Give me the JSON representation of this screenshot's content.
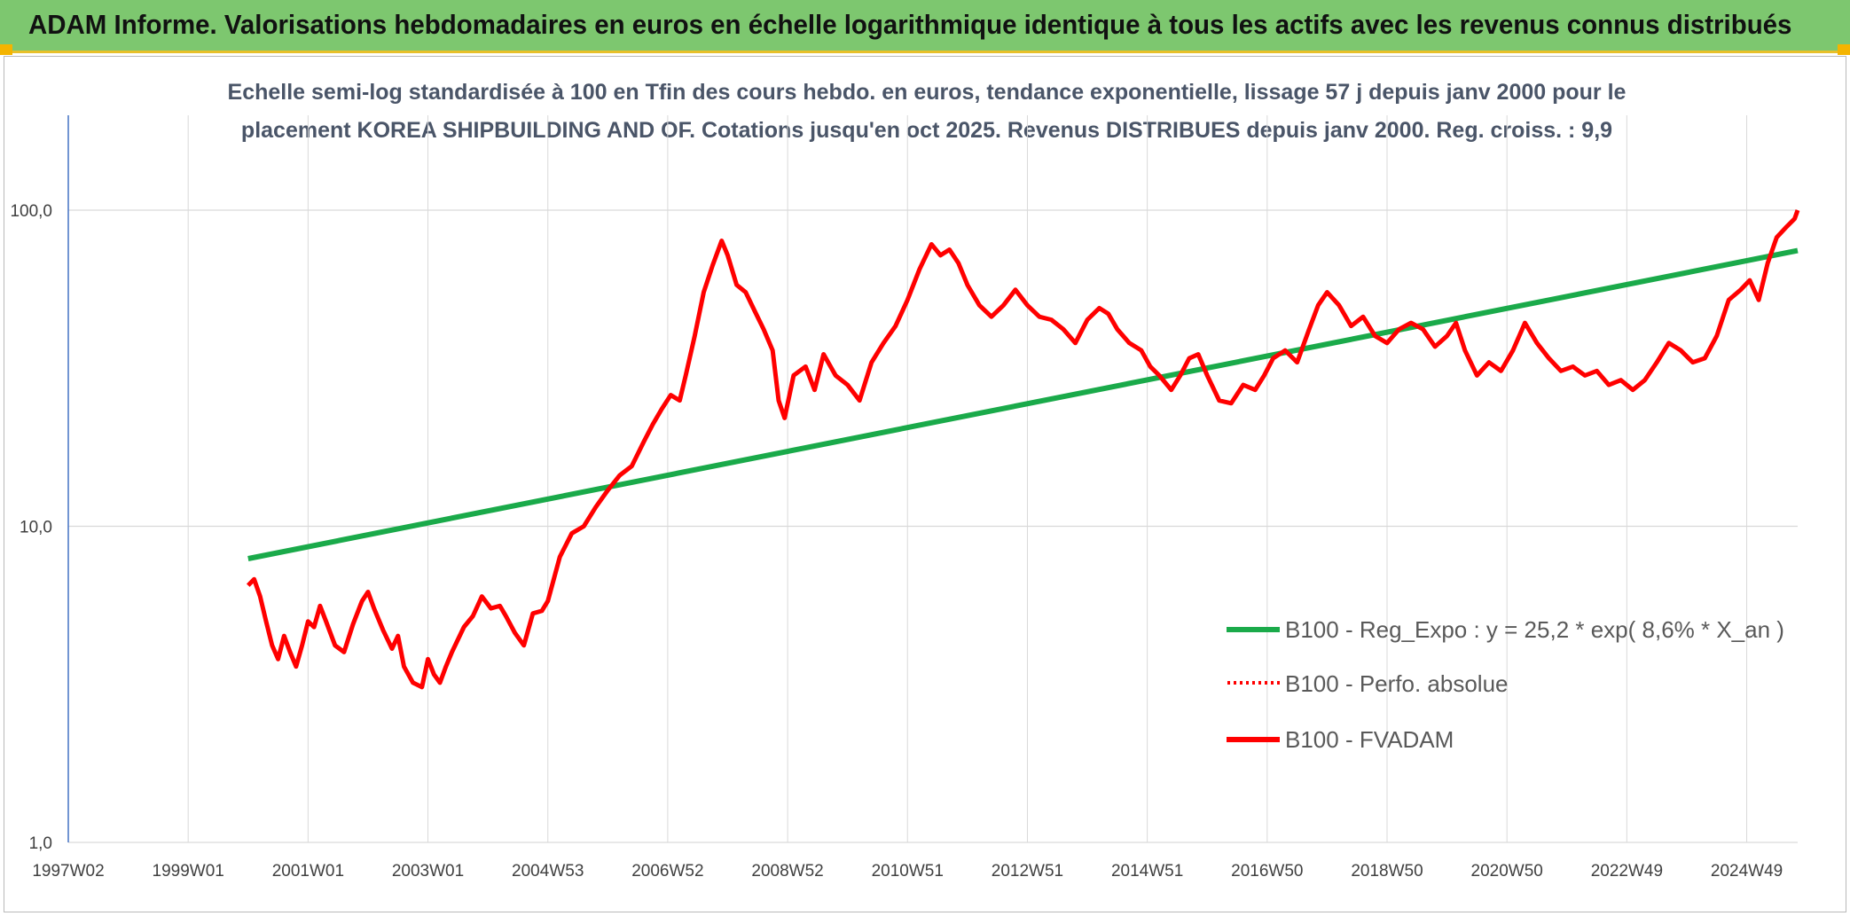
{
  "banner": {
    "title": "ADAM Informe. Valorisations hebdomadaires en euros en échelle logarithmique identique à tous les actifs avec les revenus connus distribués"
  },
  "colors": {
    "banner": "#7dc76f",
    "accent": "#f4b400",
    "trend": "#1aaa4a",
    "series": "#ff0000",
    "grid": "#d9d9d9"
  },
  "chart_data": {
    "type": "line",
    "title_lines": [
      "Echelle semi-log standardisée à 100 en Tfin des cours hebdo. en euros, tendance exponentielle, lissage 57 j depuis janv 2000 pour le",
      "placement KOREA SHIPBUILDING AND OF. Cotations jusqu'en oct 2025. Revenus DISTRIBUES depuis janv 2000. Reg. croiss. : 9,9"
    ],
    "y_scale": "log",
    "ylim": [
      1,
      100
    ],
    "y_ticks": [
      {
        "value": 1,
        "label": "1,0"
      },
      {
        "value": 10,
        "label": "10,0"
      },
      {
        "value": 100,
        "label": "100,0"
      }
    ],
    "xlim": [
      1997.0,
      2025.85
    ],
    "x_ticks": [
      {
        "value": 1997.0,
        "label": "1997W02"
      },
      {
        "value": 1999.0,
        "label": "1999W01"
      },
      {
        "value": 2001.0,
        "label": "2001W01"
      },
      {
        "value": 2003.0,
        "label": "2003W01"
      },
      {
        "value": 2005.0,
        "label": "2004W53"
      },
      {
        "value": 2007.0,
        "label": "2006W52"
      },
      {
        "value": 2009.0,
        "label": "2008W52"
      },
      {
        "value": 2011.0,
        "label": "2010W51"
      },
      {
        "value": 2013.0,
        "label": "2012W51"
      },
      {
        "value": 2015.0,
        "label": "2014W51"
      },
      {
        "value": 2017.0,
        "label": "2016W50"
      },
      {
        "value": 2019.0,
        "label": "2018W50"
      },
      {
        "value": 2021.0,
        "label": "2020W50"
      },
      {
        "value": 2023.0,
        "label": "2022W49"
      },
      {
        "value": 2025.0,
        "label": "2024W49"
      }
    ],
    "legend_position": "right",
    "series": [
      {
        "name": "B100 - Reg_Expo : y = 25,2 * exp( 8,6% *  X_an )",
        "style": "solid-green",
        "x": [
          2000.0,
          2025.85
        ],
        "y": [
          7.9,
          74.5
        ]
      },
      {
        "name": "B100 - Perfo. absolue",
        "style": "dotted-red",
        "x": [],
        "y": []
      },
      {
        "name": "B100 - FVADAM",
        "style": "solid-red",
        "x": [
          2000.0,
          2000.1,
          2000.2,
          2000.3,
          2000.4,
          2000.5,
          2000.6,
          2000.7,
          2000.8,
          2000.9,
          2001.0,
          2001.1,
          2001.2,
          2001.3,
          2001.45,
          2001.6,
          2001.75,
          2001.9,
          2002.0,
          2002.1,
          2002.25,
          2002.4,
          2002.5,
          2002.6,
          2002.75,
          2002.9,
          2003.0,
          2003.1,
          2003.2,
          2003.3,
          2003.4,
          2003.6,
          2003.75,
          2003.9,
          2004.05,
          2004.2,
          2004.3,
          2004.45,
          2004.6,
          2004.75,
          2004.9,
          2005.0,
          2005.2,
          2005.4,
          2005.6,
          2005.8,
          2006.0,
          2006.2,
          2006.4,
          2006.6,
          2006.75,
          2006.9,
          2007.05,
          2007.2,
          2007.3,
          2007.45,
          2007.6,
          2007.75,
          2007.9,
          2008.0,
          2008.15,
          2008.3,
          2008.45,
          2008.6,
          2008.75,
          2008.85,
          2008.95,
          2009.1,
          2009.3,
          2009.45,
          2009.6,
          2009.8,
          2010.0,
          2010.2,
          2010.4,
          2010.6,
          2010.8,
          2011.0,
          2011.2,
          2011.4,
          2011.55,
          2011.7,
          2011.85,
          2012.0,
          2012.2,
          2012.4,
          2012.6,
          2012.8,
          2013.0,
          2013.2,
          2013.4,
          2013.6,
          2013.8,
          2014.0,
          2014.2,
          2014.35,
          2014.5,
          2014.7,
          2014.9,
          2015.05,
          2015.2,
          2015.4,
          2015.55,
          2015.7,
          2015.85,
          2016.0,
          2016.2,
          2016.4,
          2016.6,
          2016.8,
          2016.95,
          2017.1,
          2017.3,
          2017.5,
          2017.7,
          2017.85,
          2018.0,
          2018.2,
          2018.4,
          2018.6,
          2018.8,
          2019.0,
          2019.2,
          2019.4,
          2019.6,
          2019.8,
          2020.0,
          2020.15,
          2020.3,
          2020.5,
          2020.7,
          2020.9,
          2021.1,
          2021.3,
          2021.5,
          2021.7,
          2021.9,
          2022.1,
          2022.3,
          2022.5,
          2022.7,
          2022.9,
          2023.1,
          2023.3,
          2023.5,
          2023.7,
          2023.9,
          2024.1,
          2024.3,
          2024.5,
          2024.7,
          2024.9,
          2025.05,
          2025.2,
          2025.35,
          2025.5,
          2025.65,
          2025.8,
          2025.85
        ],
        "y": [
          6.5,
          6.8,
          6.0,
          5.0,
          4.2,
          3.8,
          4.5,
          4.0,
          3.6,
          4.2,
          5.0,
          4.8,
          5.6,
          5.0,
          4.2,
          4.0,
          4.9,
          5.8,
          6.2,
          5.5,
          4.7,
          4.1,
          4.5,
          3.6,
          3.2,
          3.1,
          3.8,
          3.4,
          3.2,
          3.6,
          4.0,
          4.8,
          5.2,
          6.0,
          5.5,
          5.6,
          5.2,
          4.6,
          4.2,
          5.3,
          5.4,
          5.8,
          8.0,
          9.5,
          10.0,
          11.5,
          13.0,
          14.5,
          15.5,
          18.5,
          21.0,
          23.5,
          26.0,
          25.0,
          30.0,
          40.0,
          55.0,
          67.0,
          80.0,
          72.0,
          58.0,
          55.0,
          48.0,
          42.0,
          36.0,
          25.0,
          22.0,
          30.0,
          32.0,
          27.0,
          35.0,
          30.0,
          28.0,
          25.0,
          33.0,
          38.0,
          43.0,
          52.0,
          65.0,
          78.0,
          72.0,
          75.0,
          68.0,
          58.0,
          50.0,
          46.0,
          50.0,
          56.0,
          50.0,
          46.0,
          45.0,
          42.0,
          38.0,
          45.0,
          49.0,
          47.0,
          42.0,
          38.0,
          36.0,
          32.0,
          30.0,
          27.0,
          30.0,
          34.0,
          35.0,
          30.0,
          25.0,
          24.5,
          28.0,
          27.0,
          30.0,
          34.0,
          36.0,
          33.0,
          42.0,
          50.0,
          55.0,
          50.0,
          43.0,
          46.0,
          40.0,
          38.0,
          42.0,
          44.0,
          42.0,
          37.0,
          40.0,
          44.0,
          36.0,
          30.0,
          33.0,
          31.0,
          36.0,
          44.0,
          38.0,
          34.0,
          31.0,
          32.0,
          30.0,
          31.0,
          28.0,
          29.0,
          27.0,
          29.0,
          33.0,
          38.0,
          36.0,
          33.0,
          34.0,
          40.0,
          52.0,
          56.0,
          60.0,
          52.0,
          68.0,
          82.0,
          88.0,
          94.0,
          100.0
        ]
      }
    ]
  }
}
